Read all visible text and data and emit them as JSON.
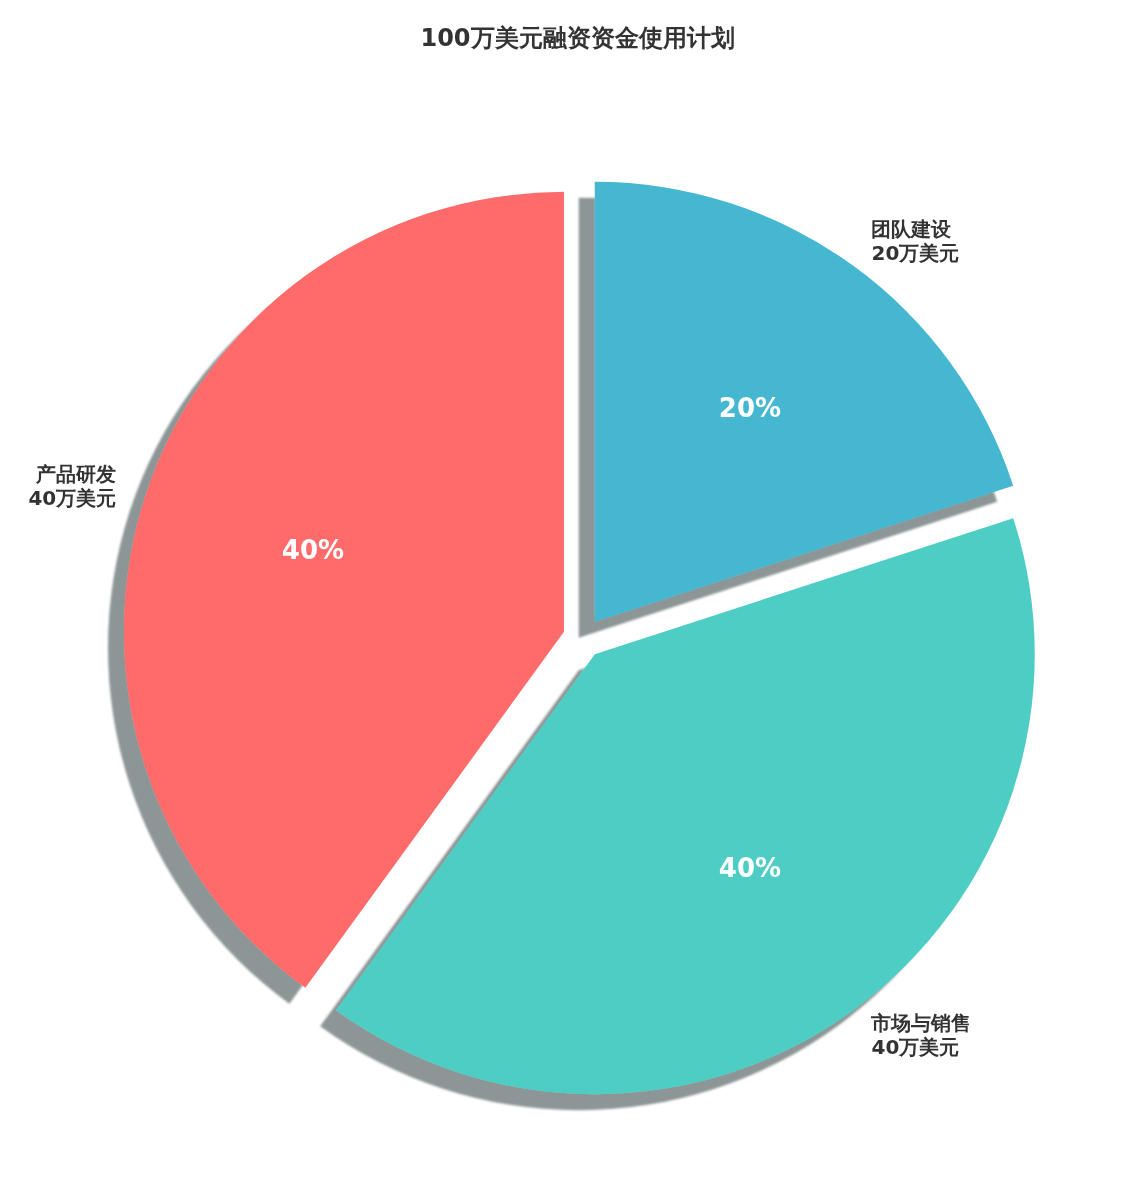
{
  "chart_data": {
    "type": "pie",
    "title": "100万美元融资资金使用计划",
    "categories": [
      "产品研发\n40万美元",
      "市场与销售\n40万美元",
      "团队建设\n20万美元"
    ],
    "values": [
      40,
      40,
      20
    ],
    "colors": [
      "#ff6b6b",
      "#4ecdc4",
      "#45b7d1"
    ],
    "value_labels": [
      "40%",
      "40%",
      "20%"
    ]
  }
}
